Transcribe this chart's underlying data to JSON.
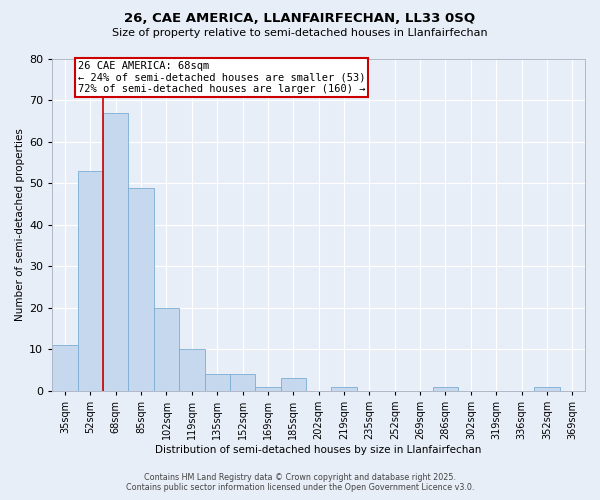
{
  "title": "26, CAE AMERICA, LLANFAIRFECHAN, LL33 0SQ",
  "subtitle": "Size of property relative to semi-detached houses in Llanfairfechan",
  "xlabel": "Distribution of semi-detached houses by size in Llanfairfechan",
  "ylabel": "Number of semi-detached properties",
  "categories": [
    "35sqm",
    "52sqm",
    "68sqm",
    "85sqm",
    "102sqm",
    "119sqm",
    "135sqm",
    "152sqm",
    "169sqm",
    "185sqm",
    "202sqm",
    "219sqm",
    "235sqm",
    "252sqm",
    "269sqm",
    "286sqm",
    "302sqm",
    "319sqm",
    "336sqm",
    "352sqm",
    "369sqm"
  ],
  "values": [
    11,
    53,
    67,
    49,
    20,
    10,
    4,
    4,
    1,
    3,
    0,
    1,
    0,
    0,
    0,
    1,
    0,
    0,
    0,
    1,
    0
  ],
  "bar_color": "#c5d8ee",
  "bar_edge_color": "#7badd4",
  "highlight_color": "#cc0000",
  "annotation_title": "26 CAE AMERICA: 68sqm",
  "annotation_line1": "← 24% of semi-detached houses are smaller (53)",
  "annotation_line2": "72% of semi-detached houses are larger (160) →",
  "annotation_box_color": "#cc0000",
  "annotation_bg": "#ffffff",
  "ylim": [
    0,
    80
  ],
  "yticks": [
    0,
    10,
    20,
    30,
    40,
    50,
    60,
    70,
    80
  ],
  "background_color": "#e8eef7",
  "grid_color": "#ffffff",
  "footer_line1": "Contains HM Land Registry data © Crown copyright and database right 2025.",
  "footer_line2": "Contains public sector information licensed under the Open Government Licence v3.0."
}
